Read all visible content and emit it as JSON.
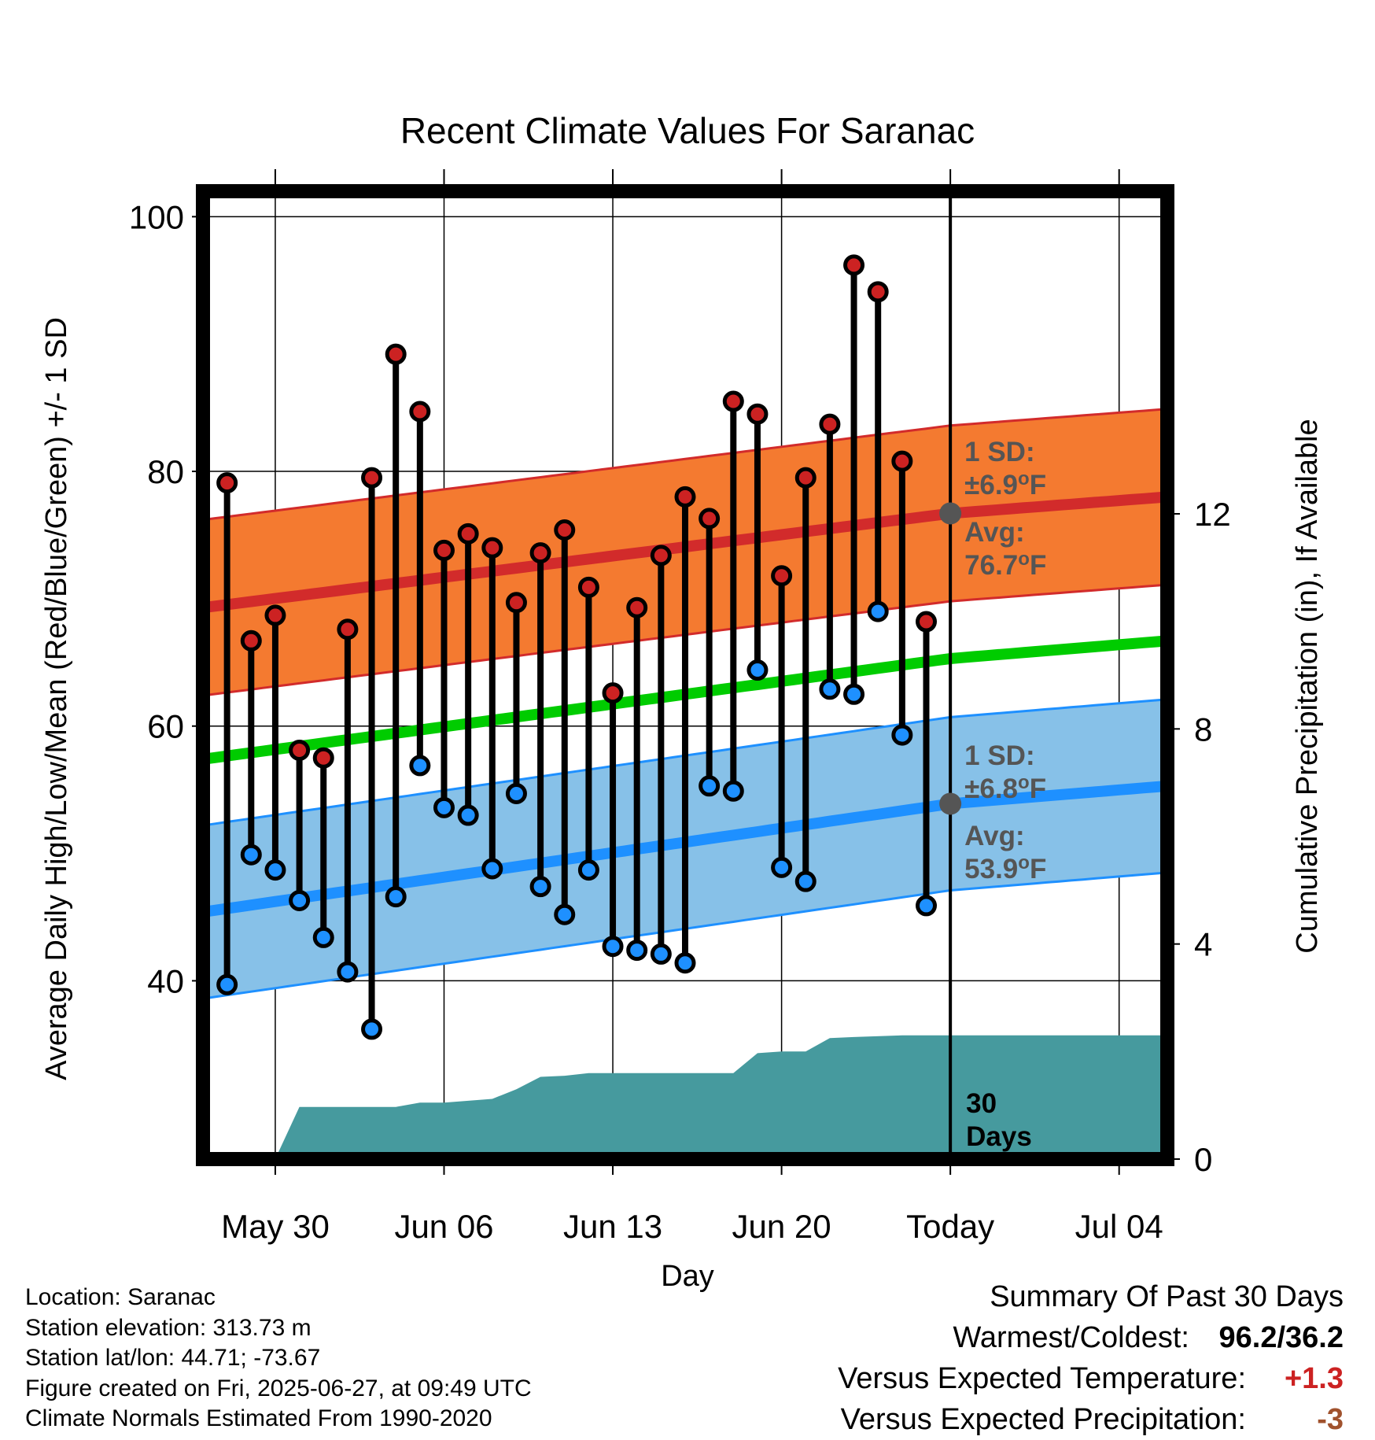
{
  "chart_data": {
    "type": "line",
    "title": "Recent Climate Values For Saranac",
    "xlabel": "Day",
    "ylabel": "Average Daily High/Low/Mean (Red/Blue/Green) +/- 1 SD",
    "y2label": "Cumulative Precipitation (in), If Available",
    "ylim": [
      26,
      102
    ],
    "y2lim": [
      0,
      18
    ],
    "y_ticks": [
      40,
      60,
      80,
      100
    ],
    "y2_ticks": [
      0,
      4,
      8,
      12
    ],
    "x_ticks": [
      {
        "date": "2025-05-30",
        "label": "May 30"
      },
      {
        "date": "2025-06-06",
        "label": "Jun 06"
      },
      {
        "date": "2025-06-13",
        "label": "Jun 13"
      },
      {
        "date": "2025-06-20",
        "label": "Jun 20"
      },
      {
        "date": "2025-06-27",
        "label": "Today"
      },
      {
        "date": "2025-07-04",
        "label": "Jul 04"
      }
    ],
    "xlim": [
      "2025-05-27",
      "2025-07-06"
    ],
    "grid": true,
    "observed": {
      "dates": [
        "2025-05-28",
        "2025-05-29",
        "2025-05-30",
        "2025-05-31",
        "2025-06-01",
        "2025-06-02",
        "2025-06-03",
        "2025-06-04",
        "2025-06-05",
        "2025-06-06",
        "2025-06-07",
        "2025-06-08",
        "2025-06-09",
        "2025-06-10",
        "2025-06-11",
        "2025-06-12",
        "2025-06-13",
        "2025-06-14",
        "2025-06-15",
        "2025-06-16",
        "2025-06-17",
        "2025-06-18",
        "2025-06-19",
        "2025-06-20",
        "2025-06-21",
        "2025-06-22",
        "2025-06-23",
        "2025-06-24",
        "2025-06-25",
        "2025-06-26"
      ],
      "high": [
        79.1,
        66.7,
        68.7,
        58.1,
        57.5,
        67.6,
        79.5,
        89.2,
        84.7,
        73.8,
        75.1,
        74.0,
        69.7,
        73.6,
        75.4,
        70.9,
        62.6,
        69.3,
        73.4,
        78.0,
        76.3,
        85.5,
        84.5,
        71.8,
        79.5,
        83.7,
        96.2,
        94.1,
        80.8,
        68.2
      ],
      "low": [
        39.7,
        49.9,
        48.7,
        46.3,
        43.4,
        40.7,
        36.2,
        46.6,
        56.9,
        53.6,
        53.0,
        48.8,
        54.7,
        47.4,
        45.2,
        48.7,
        42.7,
        42.4,
        42.1,
        41.4,
        55.3,
        54.9,
        64.4,
        48.9,
        47.8,
        62.9,
        62.5,
        69.0,
        59.3,
        45.9
      ]
    },
    "normals": {
      "dates": [
        "2025-05-27",
        "2025-06-27",
        "2025-07-06"
      ],
      "avg_high": [
        69.3,
        76.7,
        78.0
      ],
      "avg_low": [
        45.4,
        53.9,
        55.3
      ],
      "avg_mean": [
        57.4,
        65.3,
        66.7
      ],
      "high_sd": 6.9,
      "low_sd": 6.8
    },
    "precip": {
      "dates": [
        "2025-05-27",
        "2025-05-29",
        "2025-05-30",
        "2025-05-31",
        "2025-06-04",
        "2025-06-05",
        "2025-06-06",
        "2025-06-08",
        "2025-06-09",
        "2025-06-10",
        "2025-06-11",
        "2025-06-12",
        "2025-06-18",
        "2025-06-19",
        "2025-06-20",
        "2025-06-21",
        "2025-06-22",
        "2025-06-23",
        "2025-06-25",
        "2025-07-06"
      ],
      "cumulative": [
        0.0,
        0.0,
        0.0,
        0.97,
        0.97,
        1.05,
        1.05,
        1.12,
        1.3,
        1.53,
        1.55,
        1.6,
        1.6,
        1.97,
        2.0,
        2.0,
        2.25,
        2.27,
        2.3,
        2.3
      ]
    },
    "annotations": {
      "high_sd": {
        "label": "1 SD:",
        "value": "±6.9°F"
      },
      "high_avg": {
        "label": "Avg:",
        "value": "76.7°F"
      },
      "low_sd": {
        "label": "1 SD:",
        "value": "±6.8°F"
      },
      "low_avg": {
        "label": "Avg:",
        "value": "53.9°F"
      },
      "days": [
        "30",
        "Days"
      ]
    },
    "colors": {
      "high_band": "#f47a30",
      "high_line": "#d22b2b",
      "low_band": "#87c1e8",
      "low_line": "#1e90ff",
      "mean_line": "#00cc00",
      "precip": "#469a9e",
      "high_marker": "#cc2222",
      "low_marker": "#1e90ff"
    }
  },
  "info": {
    "location": "Location: Saranac",
    "elevation": "Station elevation: 313.73 m",
    "latlon": "Station lat/lon: 44.71; -73.67",
    "created": "Figure created on Fri, 2025-06-27, at 09:49 UTC",
    "normals": "Climate Normals Estimated From 1990-2020"
  },
  "summary": {
    "title": "Summary Of Past 30 Days",
    "warm_label": "Warmest/Coldest:",
    "warm_value": "96.2/36.2",
    "temp_label": "Versus Expected Temperature:",
    "temp_value": "+1.3",
    "precip_label": "Versus Expected Precipitation:",
    "precip_value": "-3"
  }
}
